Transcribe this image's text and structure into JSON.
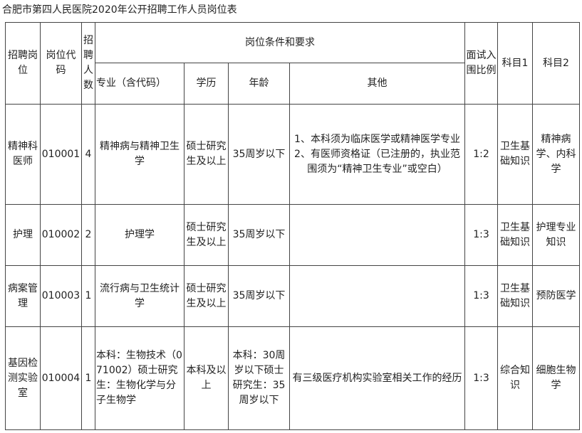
{
  "title": "合肥市第四人民医院2020年公开招聘工作人员岗位表",
  "headers": {
    "post": "招聘岗位",
    "code": "岗位代码",
    "count": "招聘人数",
    "conditions": "岗位条件和要求",
    "major": "专业（含代码）",
    "education": "学历",
    "age": "年龄",
    "other": "其他",
    "ratio": "面试入围比例",
    "subject1": "科目1",
    "subject2": "科目2"
  },
  "rows": [
    {
      "post": "精神科医师",
      "code": "010001",
      "count": "4",
      "major": "精神病与精神卫生学",
      "education": "硕士研究生及以上",
      "age": "35周岁以下",
      "other": "1、本科须为临床医学或精神医学专业\n2、有医师资格证（已注册的，执业范围须为“精神卫生专业”或空白）",
      "ratio": "1:2",
      "subject1": "卫生基础知识",
      "subject2": "精神病学、内科学"
    },
    {
      "post": "护理",
      "code": "010002",
      "count": "2",
      "major": "护理学",
      "education": "硕士研究生及以上",
      "age": "35周岁以下",
      "other": "",
      "ratio": "1:3",
      "subject1": "卫生基础知识",
      "subject2": "护理专业知识"
    },
    {
      "post": "病案管理",
      "code": "010003",
      "count": "1",
      "major": "流行病与卫生统计学",
      "education": "硕士研究生及以上",
      "age": "35周岁以下",
      "other": "",
      "ratio": "1:3",
      "subject1": "卫生基础知识",
      "subject2": "预防医学"
    },
    {
      "post": "基因检测实验室",
      "code": "010004",
      "count": "1",
      "major": "本科：生物技术（071002）硕士研究生：生物化学与分子生物学",
      "education": "本科及以上",
      "age": "本科：30周岁以下硕士研究生：35周岁以下",
      "other": "有三级医疗机构实验室相关工作的经历",
      "ratio": "1:3",
      "subject1": "综合知识",
      "subject2": "细胞生物学"
    }
  ]
}
